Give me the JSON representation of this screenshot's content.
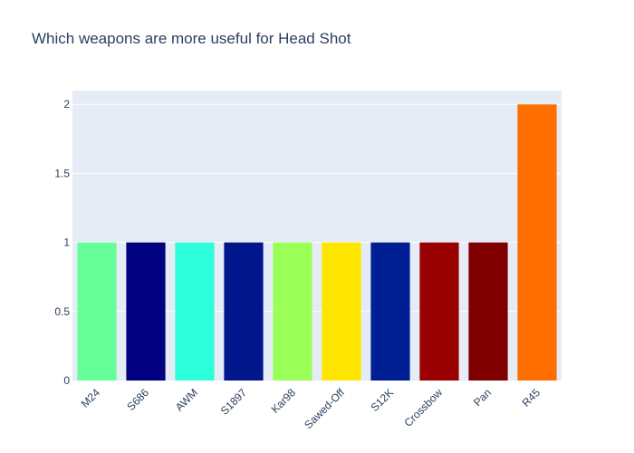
{
  "chart_data": {
    "type": "bar",
    "title": "Which weapons are more useful for Head Shot",
    "xlabel": "",
    "ylabel": "",
    "categories": [
      "M24",
      "S686",
      "AWM",
      "S1897",
      "Kar98",
      "Sawed-Off",
      "S12K",
      "Crossbow",
      "Pan",
      "R45"
    ],
    "values": [
      1,
      1,
      1,
      1,
      1,
      1,
      1,
      1,
      1,
      2
    ],
    "colors": [
      "#66ff99",
      "#000080",
      "#2cffda",
      "#00168a",
      "#9aff57",
      "#ffe600",
      "#001f95",
      "#990000",
      "#800000",
      "#ff6f00"
    ],
    "ylim": [
      0,
      2.1
    ],
    "yticks": [
      0,
      0.5,
      1,
      1.5,
      2
    ],
    "ytick_labels": [
      "0",
      "0.5",
      "1",
      "1.5",
      "2"
    ],
    "grid": true,
    "plot_background": "#e5ecf6",
    "legend": false
  }
}
